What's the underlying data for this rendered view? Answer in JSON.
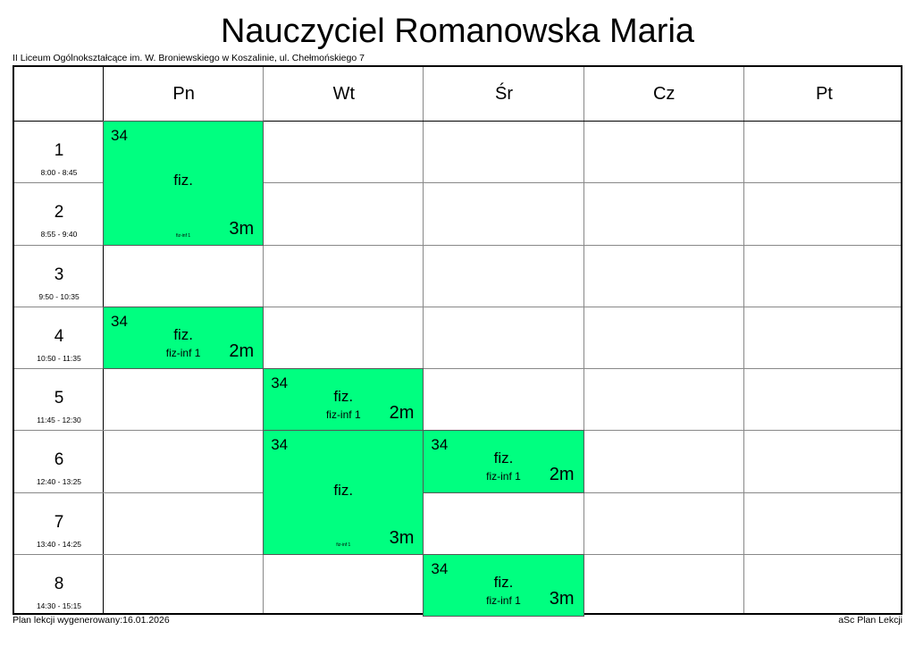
{
  "title": "Nauczyciel Romanowska Maria",
  "school": "II Liceum Ogólnokształcące im. W. Broniewskiego w Koszalinie, ul. Chełmońskiego 7",
  "days": [
    "Pn",
    "Wt",
    "Śr",
    "Cz",
    "Pt"
  ],
  "periods": [
    {
      "n": "1",
      "time": "8:00 - 8:45"
    },
    {
      "n": "2",
      "time": "8:55 - 9:40"
    },
    {
      "n": "3",
      "time": "9:50 - 10:35"
    },
    {
      "n": "4",
      "time": "10:50 - 11:35"
    },
    {
      "n": "5",
      "time": "11:45 - 12:30"
    },
    {
      "n": "6",
      "time": "12:40 - 13:25"
    },
    {
      "n": "7",
      "time": "13:40 - 14:25"
    },
    {
      "n": "8",
      "time": "14:30 - 15:15"
    }
  ],
  "lessons": [
    {
      "day": 0,
      "period": 1,
      "span": 2,
      "room": "34",
      "subject": "fiz.",
      "group": "fiz-inf 1",
      "class": "3m"
    },
    {
      "day": 0,
      "period": 4,
      "span": 1,
      "room": "34",
      "subject": "fiz.",
      "group": "fiz-inf 1",
      "class": "2m"
    },
    {
      "day": 1,
      "period": 5,
      "span": 1,
      "room": "34",
      "subject": "fiz.",
      "group": "fiz-inf 1",
      "class": "2m"
    },
    {
      "day": 1,
      "period": 6,
      "span": 2,
      "room": "34",
      "subject": "fiz.",
      "group": "fiz-inf 1",
      "class": "3m"
    },
    {
      "day": 2,
      "period": 6,
      "span": 1,
      "room": "34",
      "subject": "fiz.",
      "group": "fiz-inf 1",
      "class": "2m"
    },
    {
      "day": 2,
      "period": 8,
      "span": 1,
      "room": "34",
      "subject": "fiz.",
      "group": "fiz-inf 1",
      "class": "3m"
    }
  ],
  "lesson_color": "#00ff80",
  "footer_left": "Plan lekcji wygenerowany:16.01.2026",
  "footer_right": "aSc Plan Lekcji"
}
